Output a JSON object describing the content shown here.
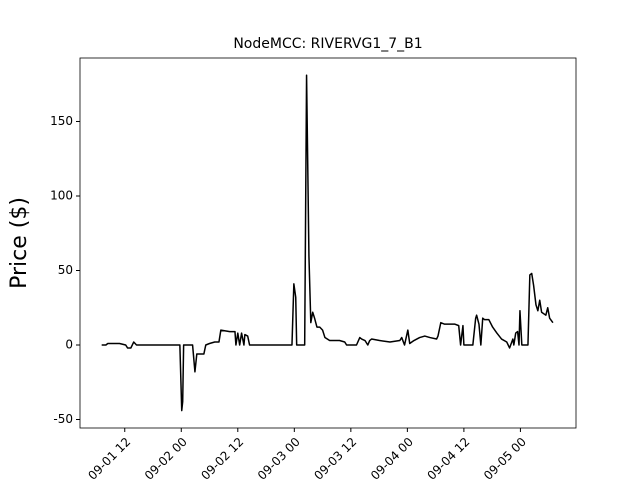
{
  "chart_data": {
    "type": "line",
    "title": "NodeMCC: RIVERVG1_7_B1",
    "y_label": "Price ($)",
    "x": [
      7.1,
      8.0,
      8.4,
      10.9,
      12.2,
      12.6,
      13.3,
      13.9,
      14.5,
      23.7,
      24.1,
      24.3,
      24.5,
      26.4,
      26.9,
      27.3,
      28.8,
      29.2,
      30.0,
      31.1,
      32.0,
      32.4,
      34.3,
      35.4,
      35.6,
      36.0,
      36.4,
      36.8,
      37.3,
      37.5,
      38.1,
      38.5,
      47.5,
      47.9,
      48.3,
      48.5,
      50.2,
      50.6,
      51.1,
      51.5,
      51.9,
      52.3,
      52.8,
      53.4,
      54.0,
      54.5,
      55.5,
      57.6,
      58.7,
      59.1,
      61.2,
      61.9,
      62.3,
      63.0,
      63.6,
      64.0,
      64.4,
      66.1,
      68.3,
      70.4,
      70.8,
      71.4,
      72.1,
      72.5,
      73.4,
      74.6,
      75.7,
      76.8,
      78.2,
      78.5,
      79.1,
      79.9,
      82.1,
      82.9,
      83.3,
      83.8,
      84.0,
      85.9,
      86.5,
      86.7,
      87.2,
      87.6,
      88.0,
      88.4,
      89.3,
      90.1,
      91.0,
      92.0,
      93.1,
      93.7,
      94.4,
      94.6,
      95.0,
      95.4,
      95.7,
      95.9,
      96.3,
      97.6,
      98.0,
      98.4,
      98.8,
      99.3,
      99.7,
      100.1,
      100.5,
      101.4,
      101.8,
      102.2,
      102.9
    ],
    "series": [
      {
        "color": "#000000",
        "values": [
          0,
          0,
          1,
          1,
          0,
          -2,
          -2,
          2,
          0,
          0,
          -44,
          -38,
          0,
          0,
          -18,
          -6,
          -6,
          0,
          1,
          2,
          2,
          10,
          9,
          9,
          0,
          8,
          0,
          8,
          0,
          7,
          6,
          0,
          0,
          41,
          32,
          0,
          0,
          181,
          60,
          15,
          22,
          18,
          12,
          12,
          10,
          5,
          3,
          3,
          2,
          0,
          0,
          5,
          4,
          3,
          0,
          3,
          4,
          3,
          2,
          3,
          5,
          0,
          10,
          1,
          3,
          5,
          6,
          5,
          4,
          6,
          15,
          14,
          14,
          13,
          0,
          13,
          0,
          0,
          18,
          20,
          14,
          0,
          18,
          17,
          17,
          12,
          8,
          4,
          2,
          -2,
          4,
          0,
          8,
          9,
          0,
          23,
          0,
          0,
          47,
          48,
          40,
          27,
          23,
          30,
          22,
          20,
          25,
          18,
          15
        ]
      }
    ],
    "xlim": [
      2.5,
      107.8
    ],
    "xticks": [
      {
        "value": 12,
        "label": "09-01 12"
      },
      {
        "value": 24,
        "label": "09-02 00"
      },
      {
        "value": 36,
        "label": "09-02 12"
      },
      {
        "value": 48,
        "label": "09-03 00"
      },
      {
        "value": 60,
        "label": "09-03 12"
      },
      {
        "value": 72,
        "label": "09-04 00"
      },
      {
        "value": 84,
        "label": "09-04 12"
      },
      {
        "value": 96,
        "label": "09-05 00"
      }
    ],
    "ylim": [
      -55.7,
      192.6
    ],
    "yticks": [
      -50,
      0,
      50,
      100,
      150
    ],
    "grid": false
  }
}
